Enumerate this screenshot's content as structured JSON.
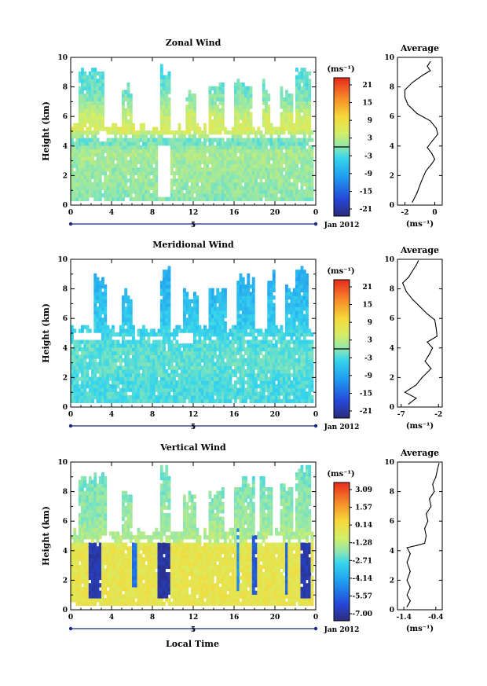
{
  "figure": {
    "xlabel": "Local Time",
    "date_label": "Jan 2012",
    "day_label": "5"
  },
  "chart_data": [
    {
      "type": "heatmap",
      "title": "Zonal Wind",
      "ylabel": "Height (km)",
      "xlim": [
        0,
        24
      ],
      "ylim": [
        0,
        10
      ],
      "x_ticks": [
        "0",
        "4",
        "8",
        "12",
        "16",
        "20",
        "0"
      ],
      "y_ticks": [
        "0",
        "2",
        "4",
        "6",
        "8",
        "10"
      ],
      "colorbar": {
        "unit_label": "(ms⁻¹)",
        "tick_labels": [
          "21",
          "15",
          "9",
          "3",
          "-3",
          "-9",
          "-15",
          "-21"
        ],
        "range": [
          -24,
          24
        ],
        "zero_contour": true
      },
      "field": {
        "base_value": 2,
        "profile": [
          [
            0.3,
            0
          ],
          [
            1.5,
            1
          ],
          [
            2.5,
            1
          ],
          [
            3.5,
            2
          ],
          [
            4.2,
            -2
          ],
          [
            5,
            6
          ],
          [
            6,
            4
          ],
          [
            7,
            0
          ],
          [
            8,
            -2
          ],
          [
            9.5,
            -3
          ]
        ],
        "high_cloud_windows": [
          [
            0.6,
            3.1,
            9.4
          ],
          [
            4.9,
            5.8,
            8.2
          ],
          [
            8.6,
            9.6,
            9.6
          ],
          [
            11.2,
            12.2,
            7.8
          ],
          [
            13.4,
            15.0,
            8.3
          ],
          [
            16.0,
            17.7,
            8.7
          ],
          [
            18.6,
            19.4,
            8.6
          ],
          [
            20.4,
            21.6,
            8.0
          ],
          [
            21.9,
            23.4,
            9.5
          ]
        ],
        "gaps": [
          {
            "t": [
              2.6,
              3.4
            ],
            "z": [
              4.2,
              5.0
            ]
          },
          {
            "t": [
              8.4,
              9.6
            ],
            "z": [
              0.4,
              4.0
            ]
          }
        ]
      },
      "average_profile": {
        "title": "Average",
        "xlabel": "(ms⁻¹)",
        "xlim": [
          -2.5,
          0.5
        ],
        "x_ticks": [
          "-2",
          "0"
        ],
        "y_ticks": [
          "0",
          "2",
          "4",
          "6",
          "8",
          "10"
        ],
        "points": [
          [
            -1.5,
            0.2
          ],
          [
            -1.2,
            0.8
          ],
          [
            -0.9,
            1.6
          ],
          [
            -0.6,
            2.3
          ],
          [
            -0.2,
            2.8
          ],
          [
            0.0,
            3.1
          ],
          [
            -0.2,
            3.5
          ],
          [
            -0.5,
            3.9
          ],
          [
            -0.2,
            4.3
          ],
          [
            0.2,
            4.8
          ],
          [
            0.1,
            5.2
          ],
          [
            -0.3,
            5.7
          ],
          [
            -1.2,
            6.2
          ],
          [
            -1.8,
            6.8
          ],
          [
            -2.0,
            7.3
          ],
          [
            -2.0,
            7.8
          ],
          [
            -1.5,
            8.3
          ],
          [
            -0.8,
            8.8
          ],
          [
            -0.3,
            9.1
          ],
          [
            -0.5,
            9.4
          ],
          [
            -0.3,
            9.7
          ]
        ]
      }
    },
    {
      "type": "heatmap",
      "title": "Meridional Wind",
      "ylabel": "Height (km)",
      "xlim": [
        0,
        24
      ],
      "ylim": [
        0,
        10
      ],
      "x_ticks": [
        "0",
        "4",
        "8",
        "12",
        "16",
        "20",
        "0"
      ],
      "y_ticks": [
        "0",
        "2",
        "4",
        "6",
        "8",
        "10"
      ],
      "colorbar": {
        "unit_label": "(ms⁻¹)",
        "tick_labels": [
          "21",
          "15",
          "9",
          "3",
          "-3",
          "-9",
          "-15",
          "-21"
        ],
        "range": [
          -24,
          24
        ],
        "zero_contour": true
      },
      "field": {
        "base_value": -5,
        "profile": [
          [
            0.3,
            -3
          ],
          [
            1.5,
            -3
          ],
          [
            2.5,
            -2
          ],
          [
            3.5,
            -2
          ],
          [
            4.5,
            -3
          ],
          [
            5.5,
            -5
          ],
          [
            6.5,
            -6
          ],
          [
            7.5,
            -7
          ],
          [
            8.5,
            -8
          ],
          [
            9.5,
            -9
          ]
        ],
        "high_cloud_windows": [
          [
            2.2,
            3.3,
            8.9
          ],
          [
            5.0,
            5.8,
            8.1
          ],
          [
            8.6,
            9.6,
            9.5
          ],
          [
            11.0,
            12.5,
            8.0
          ],
          [
            13.5,
            15.2,
            8.2
          ],
          [
            16.2,
            17.8,
            9.0
          ],
          [
            19.2,
            20.0,
            9.2
          ],
          [
            20.8,
            21.8,
            8.6
          ],
          [
            22.0,
            23.2,
            9.6
          ]
        ],
        "gaps": [
          {
            "t": [
              0.2,
              3.0
            ],
            "z": [
              4.4,
              5.0
            ]
          },
          {
            "t": [
              10.5,
              12.0
            ],
            "z": [
              4.2,
              5.0
            ]
          }
        ]
      },
      "average_profile": {
        "title": "Average",
        "xlabel": "(ms⁻¹)",
        "xlim": [
          -7.5,
          -1.5
        ],
        "x_ticks": [
          "-7",
          "-2"
        ],
        "y_ticks": [
          "0",
          "2",
          "4",
          "6",
          "8",
          "10"
        ],
        "points": [
          [
            -6.0,
            0.2
          ],
          [
            -5.0,
            0.6
          ],
          [
            -6.5,
            1.0
          ],
          [
            -5.0,
            1.5
          ],
          [
            -4.2,
            2.0
          ],
          [
            -3.0,
            2.6
          ],
          [
            -3.8,
            3.1
          ],
          [
            -3.2,
            3.6
          ],
          [
            -2.8,
            4.0
          ],
          [
            -3.5,
            4.4
          ],
          [
            -2.2,
            4.8
          ],
          [
            -2.3,
            5.3
          ],
          [
            -2.5,
            5.9
          ],
          [
            -3.5,
            6.3
          ],
          [
            -4.5,
            6.8
          ],
          [
            -5.5,
            7.3
          ],
          [
            -6.3,
            7.8
          ],
          [
            -6.8,
            8.4
          ],
          [
            -6.0,
            8.8
          ],
          [
            -5.5,
            9.2
          ],
          [
            -5.0,
            9.6
          ],
          [
            -4.7,
            9.9
          ]
        ]
      }
    },
    {
      "type": "heatmap",
      "title": "Vertical Wind",
      "ylabel": "Height (km)",
      "xlim": [
        0,
        24
      ],
      "ylim": [
        0,
        10
      ],
      "x_ticks": [
        "0",
        "4",
        "8",
        "12",
        "16",
        "20",
        "0"
      ],
      "y_ticks": [
        "0",
        "2",
        "4",
        "6",
        "8",
        "10"
      ],
      "colorbar": {
        "unit_label": "(ms⁻¹)",
        "tick_labels": [
          "3.09",
          "1.57",
          "0.14",
          "-1.28",
          "-2.71",
          "-4.14",
          "-5.57",
          "-7.00"
        ],
        "range": [
          -7.5,
          3.5
        ],
        "zero_contour": false
      },
      "field": {
        "base_value": -0.6,
        "profile": [
          [
            0.3,
            -0.2
          ],
          [
            4.2,
            -0.2
          ],
          [
            4.6,
            -1.4
          ],
          [
            6.0,
            -1.8
          ],
          [
            7.5,
            -2.0
          ],
          [
            9.5,
            -2.4
          ]
        ],
        "high_cloud_windows": [
          [
            0.6,
            3.3,
            9.3
          ],
          [
            4.8,
            5.9,
            8.3
          ],
          [
            8.6,
            9.7,
            9.8
          ],
          [
            10.8,
            12.2,
            8.4
          ],
          [
            13.4,
            15.0,
            8.3
          ],
          [
            15.8,
            17.8,
            9.0
          ],
          [
            18.5,
            19.7,
            9.0
          ],
          [
            20.3,
            21.6,
            8.4
          ],
          [
            21.8,
            23.4,
            9.8
          ]
        ],
        "downdrafts": [
          {
            "t": [
              1.6,
              3.0
            ],
            "z": [
              0.8,
              4.4
            ],
            "v": -6.8
          },
          {
            "t": [
              5.9,
              6.4
            ],
            "z": [
              1.4,
              4.4
            ],
            "v": -5.2
          },
          {
            "t": [
              8.4,
              9.6
            ],
            "z": [
              0.8,
              4.4
            ],
            "v": -7.0
          },
          {
            "t": [
              16.2,
              16.5
            ],
            "z": [
              1.2,
              5.5
            ],
            "v": -4.6
          },
          {
            "t": [
              17.6,
              18.2
            ],
            "z": [
              1.0,
              4.9
            ],
            "v": -5.8
          },
          {
            "t": [
              20.8,
              21.2
            ],
            "z": [
              1.0,
              4.4
            ],
            "v": -5.4
          },
          {
            "t": [
              22.4,
              23.3
            ],
            "z": [
              0.6,
              4.4
            ],
            "v": -6.8
          }
        ],
        "gaps": [
          {
            "t": [
              3.0,
              3.8
            ],
            "z": [
              4.4,
              5.0
            ]
          },
          {
            "t": [
              19.2,
              20.6
            ],
            "z": [
              4.4,
              5.0
            ]
          }
        ]
      },
      "average_profile": {
        "title": "Average",
        "xlabel": "(ms⁻¹)",
        "xlim": [
          -1.6,
          -0.2
        ],
        "x_ticks": [
          "-1.4",
          "-0.4"
        ],
        "y_ticks": [
          "0",
          "2",
          "4",
          "6",
          "8",
          "10"
        ],
        "points": [
          [
            -1.3,
            0.2
          ],
          [
            -1.2,
            0.6
          ],
          [
            -1.3,
            1.0
          ],
          [
            -1.2,
            1.5
          ],
          [
            -1.3,
            2.0
          ],
          [
            -1.2,
            2.6
          ],
          [
            -1.3,
            3.2
          ],
          [
            -1.2,
            3.8
          ],
          [
            -1.3,
            4.2
          ],
          [
            -1.0,
            4.35
          ],
          [
            -0.75,
            4.5
          ],
          [
            -0.7,
            5.0
          ],
          [
            -0.75,
            5.5
          ],
          [
            -0.65,
            6.0
          ],
          [
            -0.7,
            6.5
          ],
          [
            -0.55,
            7.0
          ],
          [
            -0.6,
            7.5
          ],
          [
            -0.45,
            8.0
          ],
          [
            -0.5,
            8.5
          ],
          [
            -0.4,
            9.0
          ],
          [
            -0.35,
            9.5
          ],
          [
            -0.3,
            9.9
          ]
        ]
      }
    }
  ]
}
